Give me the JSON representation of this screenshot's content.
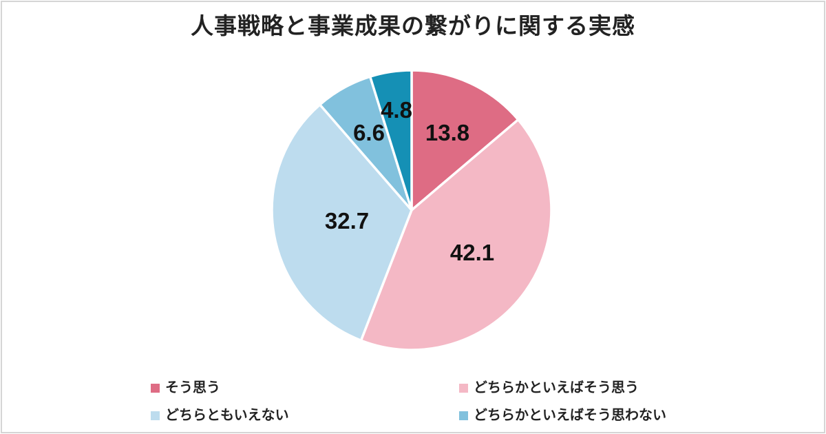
{
  "frame": {
    "border_color": "#d5d5d5",
    "background": "#ffffff"
  },
  "chart_data": {
    "type": "pie",
    "title": "人事戦略と事業成果の繋がりに関する実感",
    "start_angle_deg": 0,
    "direction": "clockwise",
    "total": 100.0,
    "slices": [
      {
        "label": "そう思う",
        "value": 13.8,
        "data_label": "13.8",
        "color": "#de6c84"
      },
      {
        "label": "どちらかといえばそう思う",
        "value": 42.1,
        "data_label": "42.1",
        "color": "#f4b8c5"
      },
      {
        "label": "どちらともいえない",
        "value": 32.7,
        "data_label": "32.7",
        "color": "#bddcee"
      },
      {
        "label": "どちらかといえばそう思わない",
        "value": 6.6,
        "data_label": "6.6",
        "color": "#81c1dd"
      },
      {
        "label": "",
        "value": 4.8,
        "data_label": "4.8",
        "color": "#1590b5"
      }
    ],
    "legend_position": "bottom",
    "legend": [
      {
        "label": "そう思う",
        "color": "#de6c84"
      },
      {
        "label": "どちらかといえばそう思う",
        "color": "#f4b8c5"
      },
      {
        "label": "どちらともいえない",
        "color": "#bddcee"
      },
      {
        "label": "どちらかといえばそう思わない",
        "color": "#81c1dd"
      }
    ]
  }
}
